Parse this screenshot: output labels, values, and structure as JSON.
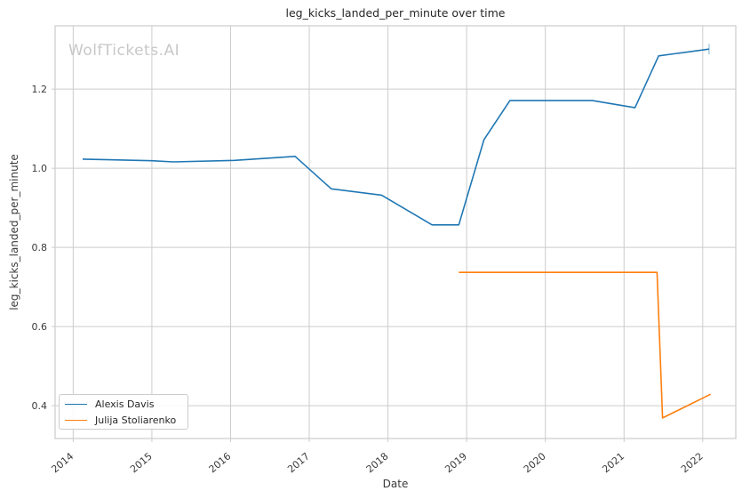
{
  "title": "leg_kicks_landed_per_minute over time",
  "watermark": "WolfTickets.AI",
  "chart_data": {
    "type": "line",
    "title": "leg_kicks_landed_per_minute over time",
    "xlabel": "Date",
    "ylabel": "leg_kicks_landed_per_minute",
    "xlim": [
      2013.77,
      2022.42
    ],
    "ylim": [
      0.317,
      1.36
    ],
    "x_ticks": [
      2014,
      2015,
      2016,
      2017,
      2018,
      2019,
      2020,
      2021,
      2022
    ],
    "x_tick_labels": [
      "2014",
      "2015",
      "2016",
      "2017",
      "2018",
      "2019",
      "2020",
      "2021",
      "2022"
    ],
    "y_ticks": [
      0.4,
      0.6,
      0.8,
      1.0,
      1.2
    ],
    "y_tick_labels": [
      "0.4",
      "0.6",
      "0.8",
      "1.0",
      "1.2"
    ],
    "grid": true,
    "legend_position": "lower-left",
    "series": [
      {
        "name": "Alexis Davis",
        "color": "#1f77b4",
        "end_tick_marker": true,
        "x": [
          2014.12,
          2015.0,
          2015.27,
          2016.05,
          2016.82,
          2017.28,
          2017.92,
          2018.56,
          2018.9,
          2019.22,
          2019.55,
          2020.6,
          2021.14,
          2021.44,
          2022.08
        ],
        "y": [
          1.023,
          1.019,
          1.016,
          1.02,
          1.03,
          0.948,
          0.932,
          0.857,
          0.857,
          1.072,
          1.171,
          1.171,
          1.153,
          1.284,
          1.301
        ]
      },
      {
        "name": "Julija Stoliarenko",
        "color": "#ff7f0e",
        "end_tick_marker": false,
        "x": [
          2018.9,
          2021.42,
          2021.49,
          2022.1
        ],
        "y": [
          0.737,
          0.737,
          0.369,
          0.429
        ]
      }
    ]
  },
  "legend": {
    "items": [
      {
        "label": "Alexis Davis",
        "color": "#1f77b4"
      },
      {
        "label": "Julija Stoliarenko",
        "color": "#ff7f0e"
      }
    ]
  },
  "colors": {
    "grid": "#cccccc",
    "axis_border": "#cccccc",
    "tick_text": "#3a3a3a",
    "title_text": "#262626",
    "watermark": "#c8c8c8"
  }
}
